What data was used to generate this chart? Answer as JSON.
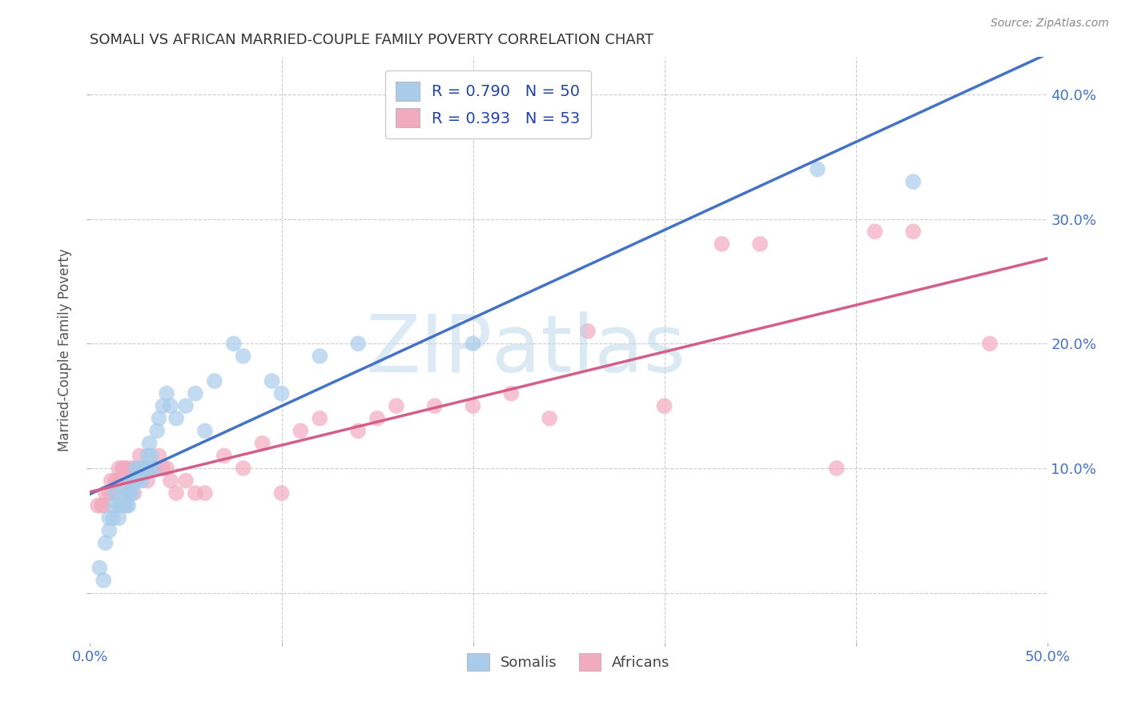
{
  "title": "SOMALI VS AFRICAN MARRIED-COUPLE FAMILY POVERTY CORRELATION CHART",
  "source": "Source: ZipAtlas.com",
  "ylabel": "Married-Couple Family Poverty",
  "xlim": [
    0.0,
    0.5
  ],
  "ylim": [
    -0.04,
    0.43
  ],
  "x_ticks": [
    0.0,
    0.1,
    0.2,
    0.3,
    0.4,
    0.5
  ],
  "y_ticks": [
    0.0,
    0.1,
    0.2,
    0.3,
    0.4
  ],
  "legend_labels": [
    "Somalis",
    "Africans"
  ],
  "somali_color": "#A8CCEA",
  "african_color": "#F2AABF",
  "somali_line_color": "#4472C4",
  "african_line_color": "#D45E8A",
  "right_tick_color": "#4472C4",
  "right_tick_color2": "#D45E8A",
  "somali_R": 0.79,
  "somali_N": 50,
  "african_R": 0.393,
  "african_N": 53,
  "legend_text_color": "#2244AA",
  "grid_color": "#CCCCCC",
  "background_color": "#FFFFFF",
  "somali_x": [
    0.005,
    0.007,
    0.008,
    0.01,
    0.01,
    0.012,
    0.013,
    0.013,
    0.015,
    0.015,
    0.016,
    0.017,
    0.018,
    0.019,
    0.02,
    0.02,
    0.021,
    0.022,
    0.022,
    0.023,
    0.024,
    0.024,
    0.025,
    0.026,
    0.027,
    0.028,
    0.03,
    0.03,
    0.031,
    0.032,
    0.033,
    0.035,
    0.036,
    0.038,
    0.04,
    0.042,
    0.045,
    0.05,
    0.055,
    0.06,
    0.065,
    0.075,
    0.08,
    0.095,
    0.1,
    0.12,
    0.14,
    0.2,
    0.38,
    0.43
  ],
  "somali_y": [
    0.02,
    0.01,
    0.04,
    0.05,
    0.06,
    0.06,
    0.07,
    0.08,
    0.07,
    0.06,
    0.07,
    0.08,
    0.07,
    0.07,
    0.08,
    0.07,
    0.08,
    0.09,
    0.08,
    0.09,
    0.09,
    0.1,
    0.09,
    0.1,
    0.09,
    0.1,
    0.1,
    0.11,
    0.12,
    0.11,
    0.1,
    0.13,
    0.14,
    0.15,
    0.16,
    0.15,
    0.14,
    0.15,
    0.16,
    0.13,
    0.17,
    0.2,
    0.19,
    0.17,
    0.16,
    0.19,
    0.2,
    0.2,
    0.34,
    0.33
  ],
  "african_x": [
    0.004,
    0.006,
    0.007,
    0.008,
    0.01,
    0.011,
    0.012,
    0.013,
    0.014,
    0.015,
    0.016,
    0.017,
    0.018,
    0.019,
    0.02,
    0.021,
    0.022,
    0.023,
    0.025,
    0.026,
    0.028,
    0.03,
    0.032,
    0.034,
    0.036,
    0.038,
    0.04,
    0.042,
    0.045,
    0.05,
    0.055,
    0.06,
    0.07,
    0.08,
    0.09,
    0.1,
    0.11,
    0.12,
    0.14,
    0.15,
    0.16,
    0.18,
    0.2,
    0.22,
    0.24,
    0.26,
    0.3,
    0.33,
    0.35,
    0.39,
    0.41,
    0.43,
    0.47
  ],
  "african_y": [
    0.07,
    0.07,
    0.07,
    0.08,
    0.08,
    0.09,
    0.08,
    0.09,
    0.09,
    0.1,
    0.09,
    0.1,
    0.1,
    0.1,
    0.08,
    0.09,
    0.1,
    0.08,
    0.1,
    0.11,
    0.1,
    0.09,
    0.1,
    0.1,
    0.11,
    0.1,
    0.1,
    0.09,
    0.08,
    0.09,
    0.08,
    0.08,
    0.11,
    0.1,
    0.12,
    0.08,
    0.13,
    0.14,
    0.13,
    0.14,
    0.15,
    0.15,
    0.15,
    0.16,
    0.14,
    0.21,
    0.15,
    0.28,
    0.28,
    0.1,
    0.29,
    0.29,
    0.2
  ]
}
